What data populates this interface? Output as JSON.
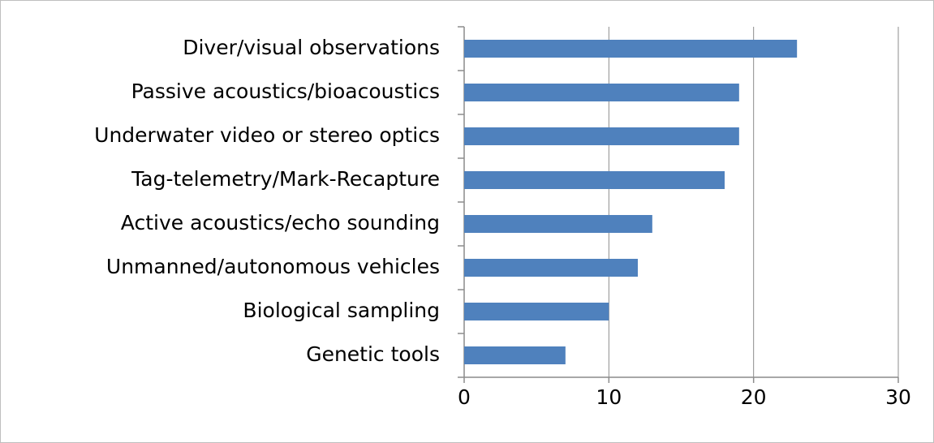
{
  "chart_data": {
    "type": "bar",
    "orientation": "horizontal",
    "categories": [
      "Diver/visual observations",
      "Passive acoustics/bioacoustics",
      "Underwater video or stereo optics",
      "Tag-telemetry/Mark-Recapture",
      "Active acoustics/echo sounding",
      "Unmanned/autonomous vehicles",
      "Biological sampling",
      "Genetic tools"
    ],
    "values": [
      23,
      19,
      19,
      18,
      13,
      12,
      10,
      7
    ],
    "color": "#4f81bd",
    "xlim": [
      0,
      30
    ],
    "xticks": [
      0,
      10,
      20,
      30
    ],
    "grid": true
  }
}
